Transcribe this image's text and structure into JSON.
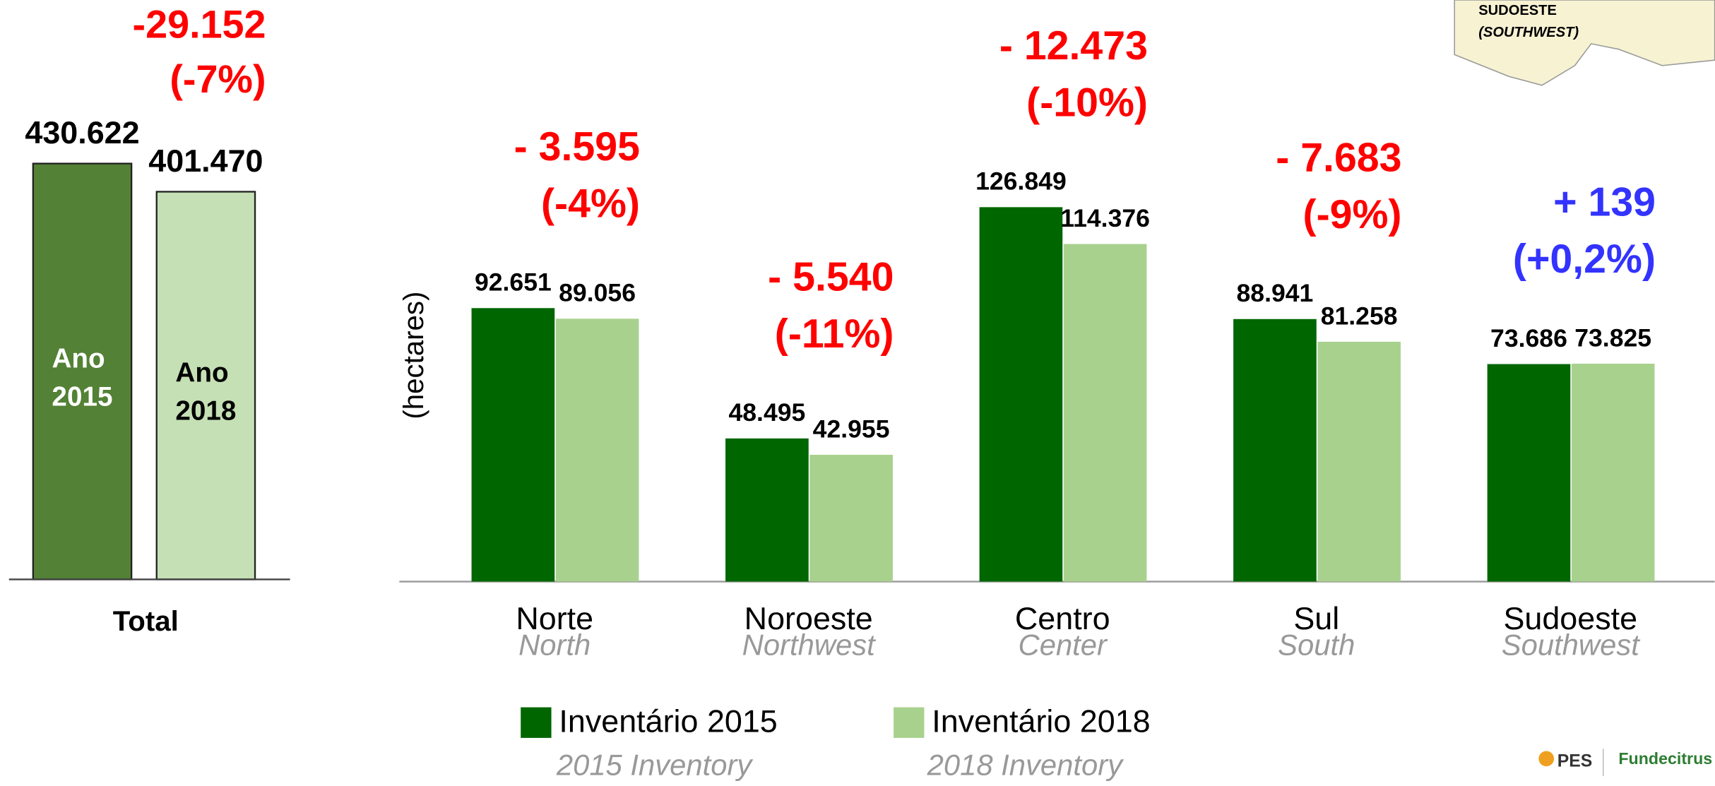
{
  "chart_data": [
    {
      "type": "bar",
      "categories": [
        "Total"
      ],
      "series": [
        {
          "name": "Ano 2015",
          "color": "#538135",
          "label_color": "#ffffff",
          "values": [
            430622
          ],
          "value_labels": [
            "430.622"
          ]
        },
        {
          "name": "Ano 2018",
          "color": "#c5e0b4",
          "label_color": "#000000",
          "values": [
            401470
          ],
          "value_labels": [
            "401.470"
          ]
        }
      ],
      "annotations": [
        {
          "lines": [
            "-29.152",
            "(-7%)"
          ],
          "color": "#ff0000"
        }
      ],
      "ylim": [
        0,
        600000
      ]
    },
    {
      "type": "grouped_bar",
      "y_label": "(hectares)",
      "categories": [
        "Norte",
        "Noroeste",
        "Centro",
        "Sul",
        "Sudoeste"
      ],
      "category_translations": [
        "North",
        "Northwest",
        "Center",
        "South",
        "Southwest"
      ],
      "series": [
        {
          "name": "Inventário 2015",
          "translation": "2015 Inventory",
          "color": "#006600",
          "values": [
            92651,
            48495,
            126849,
            88941,
            73686
          ],
          "value_labels": [
            "92.651",
            "48.495",
            "126.849",
            "88.941",
            "73.686"
          ]
        },
        {
          "name": "Inventário 2018",
          "translation": "2018 Inventory",
          "color": "#a9d18e",
          "values": [
            89056,
            42955,
            114376,
            81258,
            73825
          ],
          "value_labels": [
            "89.056",
            "42.955",
            "114.376",
            "81.258",
            "73.825"
          ]
        }
      ],
      "annotations": [
        {
          "lines": [
            "- 3.595",
            "(-4%)"
          ],
          "color": "#ff0000"
        },
        {
          "lines": [
            "- 5.540",
            "(-11%)"
          ],
          "color": "#ff0000"
        },
        {
          "lines": [
            "- 12.473",
            "(-10%)"
          ],
          "color": "#ff0000"
        },
        {
          "lines": [
            "- 7.683",
            "(-9%)"
          ],
          "color": "#ff0000"
        },
        {
          "lines": [
            "+ 139",
            "(+0,2%)"
          ],
          "color": "#3333ff"
        }
      ],
      "ylim": [
        0,
        160000
      ]
    }
  ],
  "map_inset": {
    "region": "SUDOESTE",
    "translation": "(SOUTHWEST)"
  },
  "logos": [
    "PES",
    "Fundecitrus"
  ]
}
